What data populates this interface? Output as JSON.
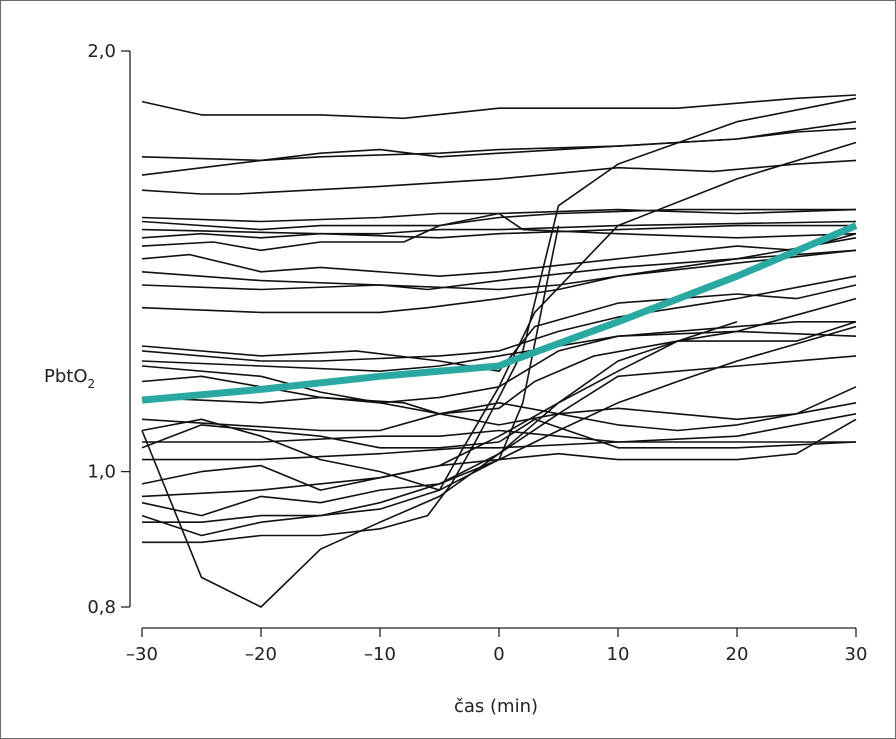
{
  "chart_data": {
    "type": "line",
    "xlabel": "čas (min)",
    "ylabel_main": "PbtO",
    "ylabel_sub": "2",
    "xlim": [
      -30,
      30
    ],
    "ylim": [
      0.8,
      2.0
    ],
    "x_ticks": [
      -30,
      -20,
      -10,
      0,
      10,
      20,
      30
    ],
    "x_tick_labels": [
      "–30",
      "–20",
      "–10",
      "0",
      "10",
      "20",
      "30"
    ],
    "y_ticks": [
      0.8,
      1.0,
      2.0
    ],
    "y_tick_labels": [
      "0,8",
      "1,0",
      "2,0"
    ],
    "y_scale": "log",
    "grid": false,
    "colors": {
      "individual": "#111111",
      "mean": "#2aa9a3",
      "axis": "#222222"
    },
    "series": [
      {
        "role": "mean",
        "x": [
          -30,
          -20,
          -10,
          0,
          1,
          10,
          20,
          30
        ],
        "y": [
          1.125,
          1.145,
          1.17,
          1.19,
          1.2,
          1.28,
          1.38,
          1.5
        ]
      },
      {
        "x": [
          -30,
          -25,
          -15,
          -8,
          0,
          15,
          25,
          30
        ],
        "y": [
          1.84,
          1.8,
          1.8,
          1.79,
          1.82,
          1.82,
          1.85,
          1.86
        ]
      },
      {
        "x": [
          -30,
          -20,
          -15,
          -10,
          -5,
          0,
          10,
          20,
          30
        ],
        "y": [
          1.68,
          1.67,
          1.69,
          1.7,
          1.68,
          1.69,
          1.71,
          1.73,
          1.78
        ]
      },
      {
        "x": [
          -30,
          -20,
          -15,
          -5,
          0,
          10,
          20,
          25,
          30
        ],
        "y": [
          1.63,
          1.67,
          1.68,
          1.69,
          1.7,
          1.71,
          1.73,
          1.75,
          1.76
        ]
      },
      {
        "x": [
          -30,
          -25,
          -22,
          -10,
          0,
          10,
          18,
          25,
          30
        ],
        "y": [
          1.59,
          1.58,
          1.58,
          1.6,
          1.62,
          1.65,
          1.64,
          1.66,
          1.67
        ]
      },
      {
        "x": [
          -30,
          -20,
          -15,
          -5,
          0,
          5,
          15,
          30
        ],
        "y": [
          1.51,
          1.49,
          1.5,
          1.5,
          1.52,
          1.53,
          1.54,
          1.54
        ]
      },
      {
        "x": [
          -30,
          -20,
          -10,
          -5,
          0,
          10,
          20,
          30
        ],
        "y": [
          1.52,
          1.51,
          1.52,
          1.53,
          1.53,
          1.54,
          1.53,
          1.54
        ]
      },
      {
        "x": [
          -30,
          -15,
          -10,
          -5,
          0,
          10,
          30
        ],
        "y": [
          1.49,
          1.48,
          1.48,
          1.49,
          1.49,
          1.5,
          1.51
        ]
      },
      {
        "x": [
          -30,
          -25,
          -20,
          -15,
          -5,
          0,
          10,
          20,
          30
        ],
        "y": [
          1.47,
          1.48,
          1.47,
          1.48,
          1.47,
          1.48,
          1.49,
          1.5,
          1.5
        ]
      },
      {
        "x": [
          -30,
          -24,
          -20,
          -15,
          -8,
          -5,
          0,
          2,
          10,
          20,
          30
        ],
        "y": [
          1.45,
          1.46,
          1.44,
          1.46,
          1.46,
          1.5,
          1.53,
          1.49,
          1.48,
          1.47,
          1.48
        ]
      },
      {
        "x": [
          -30,
          -26,
          -20,
          -15,
          -5,
          0,
          10,
          20,
          25,
          30
        ],
        "y": [
          1.42,
          1.43,
          1.39,
          1.4,
          1.38,
          1.39,
          1.42,
          1.45,
          1.44,
          1.48
        ]
      },
      {
        "x": [
          -30,
          -20,
          -10,
          0,
          5,
          10,
          20,
          30
        ],
        "y": [
          1.39,
          1.37,
          1.36,
          1.35,
          1.36,
          1.38,
          1.42,
          1.47
        ]
      },
      {
        "x": [
          -30,
          -20,
          -10,
          -6,
          0,
          10,
          20,
          30
        ],
        "y": [
          1.36,
          1.35,
          1.36,
          1.35,
          1.37,
          1.4,
          1.42,
          1.44
        ]
      },
      {
        "x": [
          -30,
          -20,
          -10,
          -6,
          0,
          5,
          10,
          20,
          30
        ],
        "y": [
          1.31,
          1.3,
          1.3,
          1.31,
          1.33,
          1.35,
          1.38,
          1.41,
          1.44
        ]
      },
      {
        "x": [
          -30,
          -20,
          -12,
          -5,
          0,
          3,
          10,
          15,
          20,
          25,
          30
        ],
        "y": [
          1.23,
          1.21,
          1.22,
          1.2,
          1.18,
          1.27,
          1.32,
          1.33,
          1.34,
          1.33,
          1.36
        ]
      },
      {
        "x": [
          -30,
          -20,
          -15,
          -5,
          0,
          5,
          10,
          20,
          30
        ],
        "y": [
          1.22,
          1.2,
          1.2,
          1.21,
          1.22,
          1.26,
          1.29,
          1.33,
          1.38
        ]
      },
      {
        "x": [
          -30,
          -20,
          -10,
          -5,
          0,
          10,
          20,
          25,
          30
        ],
        "y": [
          1.2,
          1.19,
          1.18,
          1.19,
          1.21,
          1.25,
          1.27,
          1.28,
          1.28
        ]
      },
      {
        "x": [
          -30,
          -20,
          -15,
          -10,
          -5,
          0,
          5,
          10,
          20,
          30
        ],
        "y": [
          1.19,
          1.17,
          1.14,
          1.12,
          1.13,
          1.15,
          1.22,
          1.25,
          1.26,
          1.25
        ]
      },
      {
        "x": [
          -30,
          -25,
          -15,
          -8,
          -5,
          0,
          3,
          8,
          15,
          25,
          30
        ],
        "y": [
          1.16,
          1.17,
          1.13,
          1.12,
          1.1,
          1.11,
          1.16,
          1.21,
          1.24,
          1.24,
          1.28
        ]
      },
      {
        "x": [
          -30,
          -20,
          -15,
          -10,
          -5,
          0,
          5,
          10,
          15,
          20,
          25,
          30
        ],
        "y": [
          1.13,
          1.12,
          1.13,
          1.12,
          1.1,
          1.08,
          1.1,
          1.11,
          1.1,
          1.09,
          1.1,
          1.15
        ]
      },
      {
        "x": [
          -30,
          -15,
          -10,
          -5,
          0,
          5,
          10,
          15,
          20,
          25,
          30
        ],
        "y": [
          1.09,
          1.07,
          1.07,
          1.1,
          1.12,
          1.1,
          1.08,
          1.07,
          1.08,
          1.1,
          1.12
        ]
      },
      {
        "x": [
          -30,
          -25,
          -20,
          -15,
          -10,
          -5,
          -3,
          0,
          3,
          10,
          20,
          30
        ],
        "y": [
          1.07,
          1.09,
          1.06,
          1.02,
          1.0,
          0.97,
          1.04,
          1.15,
          1.3,
          1.5,
          1.62,
          1.72
        ]
      },
      {
        "x": [
          -30,
          -20,
          -10,
          -5,
          0,
          5,
          10,
          20,
          25,
          30
        ],
        "y": [
          1.05,
          1.05,
          1.06,
          1.06,
          1.07,
          1.06,
          1.05,
          1.05,
          1.05,
          1.05
        ]
      },
      {
        "x": [
          -30,
          -25,
          -15,
          -10,
          -5,
          0,
          3,
          10,
          20,
          30
        ],
        "y": [
          1.04,
          1.08,
          1.06,
          1.04,
          1.04,
          1.05,
          1.09,
          1.04,
          1.04,
          1.05
        ]
      },
      {
        "x": [
          -30,
          -20,
          -10,
          -3,
          0,
          10,
          20,
          30
        ],
        "y": [
          1.02,
          1.02,
          1.03,
          1.04,
          1.04,
          1.05,
          1.06,
          1.1
        ]
      },
      {
        "x": [
          -30,
          -25,
          -20,
          -15,
          -10,
          -5,
          0,
          5,
          10,
          20,
          25,
          30
        ],
        "y": [
          0.98,
          1.0,
          1.01,
          0.97,
          0.99,
          1.01,
          1.02,
          1.03,
          1.02,
          1.02,
          1.03,
          1.09
        ]
      },
      {
        "x": [
          -30,
          -20,
          -10,
          -5,
          0,
          5,
          10,
          15,
          20,
          30
        ],
        "y": [
          0.96,
          0.97,
          0.99,
          1.01,
          1.06,
          1.12,
          1.2,
          1.24,
          1.26,
          1.33
        ]
      },
      {
        "x": [
          -30,
          -25,
          -20,
          -15,
          -10,
          -5,
          0,
          5,
          10,
          15,
          20,
          30
        ],
        "y": [
          0.95,
          0.93,
          0.96,
          0.95,
          0.97,
          0.98,
          1.02,
          1.07,
          1.12,
          1.16,
          1.2,
          1.27
        ]
      },
      {
        "x": [
          -30,
          -25,
          -20,
          -15,
          -10,
          -5,
          0,
          5,
          10,
          30
        ],
        "y": [
          0.93,
          0.9,
          0.92,
          0.93,
          0.95,
          0.98,
          1.03,
          1.1,
          1.17,
          1.21
        ]
      },
      {
        "x": [
          -30,
          -25,
          -20,
          -15,
          -10,
          -5,
          0,
          2,
          5
        ],
        "y": [
          0.92,
          0.92,
          0.93,
          0.93,
          0.94,
          0.97,
          1.02,
          1.12,
          1.5
        ]
      },
      {
        "x": [
          -30,
          -25,
          -20,
          -15,
          -10,
          -6,
          -4,
          -2,
          0,
          2,
          5,
          10,
          20,
          30
        ],
        "y": [
          0.89,
          0.89,
          0.9,
          0.9,
          0.91,
          0.93,
          0.98,
          1.05,
          1.13,
          1.22,
          1.55,
          1.66,
          1.78,
          1.85
        ]
      },
      {
        "x": [
          -30,
          -25,
          -20,
          -15,
          -10,
          -5,
          0,
          5,
          10,
          15,
          20
        ],
        "y": [
          1.07,
          0.84,
          0.8,
          0.88,
          0.92,
          0.96,
          1.03,
          1.12,
          1.18,
          1.24,
          1.28
        ]
      }
    ]
  }
}
